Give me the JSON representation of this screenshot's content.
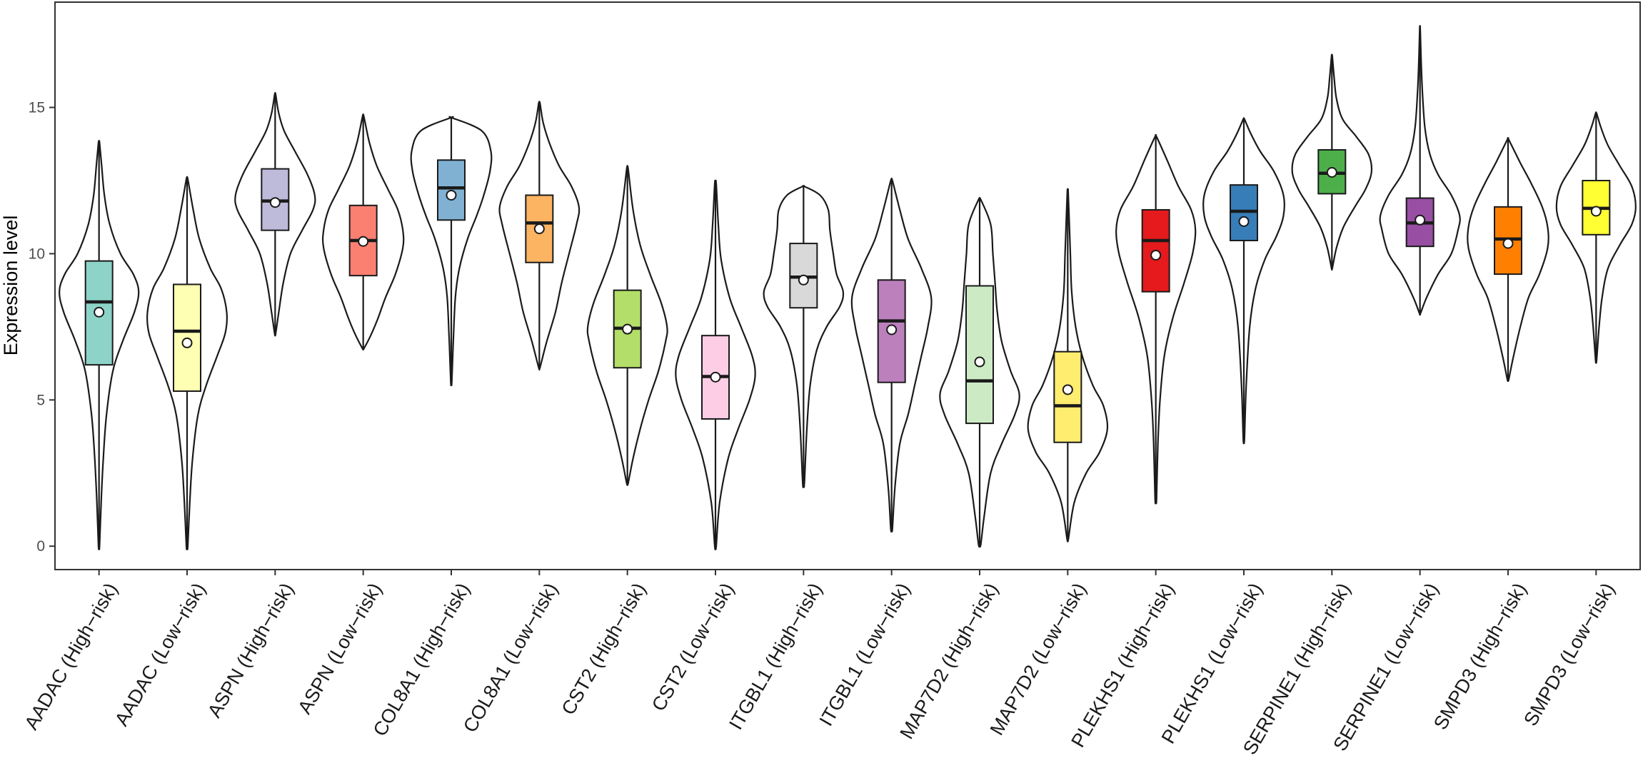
{
  "chart_data": {
    "type": "violin",
    "ylabel": "Expression level",
    "xlabel": "",
    "ylim": [
      -0.8,
      18.6
    ],
    "yticks": [
      0,
      5,
      10,
      15
    ],
    "grid": false,
    "legend": "none",
    "categories": [
      "AADAC (High−risk)",
      "AADAC (Low−risk)",
      "ASPN (High−risk)",
      "ASPN (Low−risk)",
      "COL8A1 (High−risk)",
      "COL8A1 (Low−risk)",
      "CST2 (High−risk)",
      "CST2 (Low−risk)",
      "ITGBL1 (High−risk)",
      "ITGBL1 (Low−risk)",
      "MAP7D2 (High−risk)",
      "MAP7D2 (Low−risk)",
      "PLEKHS1 (High−risk)",
      "PLEKHS1 (Low−risk)",
      "SERPINE1 (High−risk)",
      "SERPINE1 (Low−risk)",
      "SMPD3 (High−risk)",
      "SMPD3 (Low−risk)"
    ],
    "colors": [
      "#8dd3c7",
      "#ffffb3",
      "#bebada",
      "#fb8072",
      "#80b1d3",
      "#fdb462",
      "#b3de69",
      "#fccde5",
      "#d9d9d9",
      "#bc80bd",
      "#ccebc5",
      "#ffed6f",
      "#e41a1c",
      "#377eb8",
      "#4daf4a",
      "#984ea3",
      "#ff7f00",
      "#ffff33"
    ],
    "groups": [
      {
        "min": 0.0,
        "q1": 6.2,
        "median": 8.35,
        "q3": 9.75,
        "max": 13.8,
        "mean": 8.0,
        "density": [
          [
            0.0,
            0.005
          ],
          [
            1.5,
            0.02
          ],
          [
            3.0,
            0.04
          ],
          [
            4.5,
            0.07
          ],
          [
            6.0,
            0.13
          ],
          [
            7.0,
            0.22
          ],
          [
            8.0,
            0.33
          ],
          [
            8.7,
            0.37
          ],
          [
            9.3,
            0.32
          ],
          [
            10.0,
            0.2
          ],
          [
            11.0,
            0.1
          ],
          [
            12.0,
            0.05
          ],
          [
            13.0,
            0.025
          ],
          [
            13.8,
            0.005
          ]
        ]
      },
      {
        "min": 0.0,
        "q1": 5.3,
        "median": 7.35,
        "q3": 8.95,
        "max": 12.55,
        "mean": 6.95,
        "density": [
          [
            0.0,
            0.005
          ],
          [
            1.5,
            0.02
          ],
          [
            3.0,
            0.04
          ],
          [
            4.5,
            0.08
          ],
          [
            5.5,
            0.14
          ],
          [
            6.5,
            0.22
          ],
          [
            7.3,
            0.28
          ],
          [
            8.0,
            0.29
          ],
          [
            8.8,
            0.25
          ],
          [
            9.5,
            0.17
          ],
          [
            10.5,
            0.09
          ],
          [
            11.5,
            0.045
          ],
          [
            12.55,
            0.005
          ]
        ]
      },
      {
        "min": 7.25,
        "q1": 10.8,
        "median": 11.8,
        "q3": 12.9,
        "max": 15.45,
        "mean": 11.75,
        "density": [
          [
            7.25,
            0.005
          ],
          [
            8.0,
            0.04
          ],
          [
            9.0,
            0.09
          ],
          [
            10.0,
            0.17
          ],
          [
            10.8,
            0.3
          ],
          [
            11.5,
            0.42
          ],
          [
            12.0,
            0.44
          ],
          [
            12.7,
            0.36
          ],
          [
            13.5,
            0.22
          ],
          [
            14.2,
            0.1
          ],
          [
            14.8,
            0.04
          ],
          [
            15.45,
            0.005
          ]
        ]
      },
      {
        "min": 6.75,
        "q1": 9.25,
        "median": 10.45,
        "q3": 11.65,
        "max": 14.7,
        "mean": 10.42,
        "density": [
          [
            6.75,
            0.005
          ],
          [
            7.2,
            0.06
          ],
          [
            7.8,
            0.12
          ],
          [
            8.5,
            0.18
          ],
          [
            9.3,
            0.26
          ],
          [
            10.2,
            0.32
          ],
          [
            10.8,
            0.32
          ],
          [
            11.5,
            0.28
          ],
          [
            12.2,
            0.2
          ],
          [
            13.0,
            0.11
          ],
          [
            13.8,
            0.05
          ],
          [
            14.7,
            0.005
          ]
        ]
      },
      {
        "min": 5.6,
        "q1": 11.15,
        "median": 12.25,
        "q3": 13.2,
        "max": 14.65,
        "mean": 12.0,
        "density": [
          [
            5.6,
            0.005
          ],
          [
            7.0,
            0.02
          ],
          [
            8.5,
            0.04
          ],
          [
            9.5,
            0.08
          ],
          [
            10.5,
            0.16
          ],
          [
            11.3,
            0.25
          ],
          [
            12.0,
            0.32
          ],
          [
            12.8,
            0.38
          ],
          [
            13.5,
            0.39
          ],
          [
            14.2,
            0.3
          ],
          [
            14.65,
            0.005
          ]
        ]
      },
      {
        "min": 6.1,
        "q1": 9.7,
        "median": 11.05,
        "q3": 12.0,
        "max": 15.15,
        "mean": 10.85,
        "density": [
          [
            6.1,
            0.005
          ],
          [
            7.0,
            0.06
          ],
          [
            8.0,
            0.13
          ],
          [
            9.0,
            0.18
          ],
          [
            10.0,
            0.24
          ],
          [
            11.0,
            0.3
          ],
          [
            11.6,
            0.32
          ],
          [
            12.3,
            0.26
          ],
          [
            13.0,
            0.16
          ],
          [
            13.8,
            0.08
          ],
          [
            14.5,
            0.03
          ],
          [
            15.15,
            0.005
          ]
        ]
      },
      {
        "min": 2.15,
        "q1": 6.1,
        "median": 7.45,
        "q3": 8.75,
        "max": 12.9,
        "mean": 7.42,
        "density": [
          [
            2.15,
            0.005
          ],
          [
            3.0,
            0.04
          ],
          [
            4.0,
            0.09
          ],
          [
            5.0,
            0.15
          ],
          [
            6.0,
            0.22
          ],
          [
            7.0,
            0.27
          ],
          [
            7.5,
            0.28
          ],
          [
            8.3,
            0.24
          ],
          [
            9.3,
            0.16
          ],
          [
            10.3,
            0.09
          ],
          [
            11.5,
            0.04
          ],
          [
            12.9,
            0.005
          ]
        ]
      },
      {
        "min": 0.0,
        "q1": 4.35,
        "median": 5.8,
        "q3": 7.2,
        "max": 12.4,
        "mean": 5.78,
        "density": [
          [
            0.0,
            0.005
          ],
          [
            1.5,
            0.03
          ],
          [
            3.0,
            0.09
          ],
          [
            4.0,
            0.16
          ],
          [
            5.0,
            0.24
          ],
          [
            5.8,
            0.28
          ],
          [
            6.5,
            0.26
          ],
          [
            7.5,
            0.18
          ],
          [
            8.5,
            0.1
          ],
          [
            9.8,
            0.04
          ],
          [
            11.0,
            0.02
          ],
          [
            12.4,
            0.005
          ]
        ]
      },
      {
        "min": 2.15,
        "q1": 8.15,
        "median": 9.2,
        "q3": 10.35,
        "max": 12.3,
        "mean": 9.1,
        "density": [
          [
            2.15,
            0.005
          ],
          [
            4.0,
            0.02
          ],
          [
            5.5,
            0.04
          ],
          [
            6.7,
            0.08
          ],
          [
            7.5,
            0.14
          ],
          [
            8.2,
            0.22
          ],
          [
            8.7,
            0.24
          ],
          [
            9.3,
            0.2
          ],
          [
            10.0,
            0.18
          ],
          [
            10.8,
            0.16
          ],
          [
            11.5,
            0.15
          ],
          [
            12.0,
            0.1
          ],
          [
            12.3,
            0.005
          ]
        ]
      },
      {
        "min": 0.6,
        "q1": 5.6,
        "median": 7.7,
        "q3": 9.1,
        "max": 12.5,
        "mean": 7.4,
        "density": [
          [
            0.6,
            0.005
          ],
          [
            2.0,
            0.02
          ],
          [
            3.5,
            0.05
          ],
          [
            4.5,
            0.1
          ],
          [
            5.5,
            0.14
          ],
          [
            6.5,
            0.18
          ],
          [
            7.5,
            0.22
          ],
          [
            8.5,
            0.24
          ],
          [
            9.5,
            0.18
          ],
          [
            10.5,
            0.1
          ],
          [
            11.5,
            0.05
          ],
          [
            12.5,
            0.005
          ]
        ]
      },
      {
        "min": 0.05,
        "q1": 4.2,
        "median": 5.65,
        "q3": 8.9,
        "max": 11.85,
        "mean": 6.3,
        "density": [
          [
            0.05,
            0.005
          ],
          [
            1.0,
            0.02
          ],
          [
            2.5,
            0.05
          ],
          [
            3.5,
            0.1
          ],
          [
            4.5,
            0.16
          ],
          [
            5.2,
            0.18
          ],
          [
            6.0,
            0.14
          ],
          [
            7.0,
            0.1
          ],
          [
            8.0,
            0.08
          ],
          [
            9.0,
            0.07
          ],
          [
            10.0,
            0.06
          ],
          [
            11.0,
            0.05
          ],
          [
            11.85,
            0.005
          ]
        ]
      },
      {
        "min": 0.25,
        "q1": 3.55,
        "median": 4.8,
        "q3": 6.65,
        "max": 12.15,
        "mean": 5.35,
        "density": [
          [
            0.25,
            0.005
          ],
          [
            1.5,
            0.05
          ],
          [
            2.5,
            0.14
          ],
          [
            3.2,
            0.24
          ],
          [
            4.0,
            0.3
          ],
          [
            4.8,
            0.27
          ],
          [
            5.5,
            0.19
          ],
          [
            6.5,
            0.11
          ],
          [
            7.5,
            0.06
          ],
          [
            8.7,
            0.03
          ],
          [
            10.0,
            0.02
          ],
          [
            11.3,
            0.01
          ],
          [
            12.15,
            0.003
          ]
        ]
      },
      {
        "min": 1.6,
        "q1": 8.7,
        "median": 10.45,
        "q3": 11.5,
        "max": 14.0,
        "mean": 9.95,
        "density": [
          [
            1.6,
            0.005
          ],
          [
            3.5,
            0.015
          ],
          [
            5.0,
            0.03
          ],
          [
            6.5,
            0.06
          ],
          [
            7.8,
            0.12
          ],
          [
            9.0,
            0.2
          ],
          [
            10.0,
            0.26
          ],
          [
            10.8,
            0.28
          ],
          [
            11.5,
            0.25
          ],
          [
            12.3,
            0.16
          ],
          [
            13.2,
            0.08
          ],
          [
            14.0,
            0.005
          ]
        ]
      },
      {
        "min": 3.65,
        "q1": 10.45,
        "median": 11.45,
        "q3": 12.35,
        "max": 14.6,
        "mean": 11.1,
        "density": [
          [
            3.65,
            0.005
          ],
          [
            5.5,
            0.02
          ],
          [
            7.5,
            0.05
          ],
          [
            8.8,
            0.1
          ],
          [
            9.8,
            0.18
          ],
          [
            10.6,
            0.28
          ],
          [
            11.3,
            0.34
          ],
          [
            12.0,
            0.34
          ],
          [
            12.8,
            0.26
          ],
          [
            13.5,
            0.14
          ],
          [
            14.1,
            0.06
          ],
          [
            14.6,
            0.005
          ]
        ]
      },
      {
        "min": 9.5,
        "q1": 12.05,
        "median": 12.75,
        "q3": 13.55,
        "max": 16.75,
        "mean": 12.78,
        "density": [
          [
            9.5,
            0.005
          ],
          [
            10.2,
            0.06
          ],
          [
            10.9,
            0.15
          ],
          [
            11.6,
            0.3
          ],
          [
            12.2,
            0.44
          ],
          [
            12.8,
            0.52
          ],
          [
            13.4,
            0.48
          ],
          [
            14.0,
            0.32
          ],
          [
            14.6,
            0.14
          ],
          [
            15.3,
            0.06
          ],
          [
            16.0,
            0.03
          ],
          [
            16.75,
            0.005
          ]
        ]
      },
      {
        "min": 7.95,
        "q1": 10.25,
        "median": 11.05,
        "q3": 11.9,
        "max": 17.7,
        "mean": 11.15,
        "density": [
          [
            7.95,
            0.005
          ],
          [
            8.5,
            0.08
          ],
          [
            9.3,
            0.22
          ],
          [
            10.0,
            0.38
          ],
          [
            10.8,
            0.46
          ],
          [
            11.3,
            0.48
          ],
          [
            12.0,
            0.38
          ],
          [
            12.7,
            0.22
          ],
          [
            13.4,
            0.12
          ],
          [
            14.3,
            0.06
          ],
          [
            15.5,
            0.03
          ],
          [
            16.5,
            0.015
          ],
          [
            17.7,
            0.003
          ]
        ]
      },
      {
        "min": 5.7,
        "q1": 9.3,
        "median": 10.5,
        "q3": 11.6,
        "max": 13.9,
        "mean": 10.35,
        "density": [
          [
            5.7,
            0.005
          ],
          [
            6.5,
            0.04
          ],
          [
            7.5,
            0.09
          ],
          [
            8.5,
            0.15
          ],
          [
            9.3,
            0.23
          ],
          [
            10.2,
            0.29
          ],
          [
            10.9,
            0.29
          ],
          [
            11.6,
            0.25
          ],
          [
            12.4,
            0.17
          ],
          [
            13.1,
            0.09
          ],
          [
            13.9,
            0.005
          ]
        ]
      },
      {
        "min": 6.35,
        "q1": 10.65,
        "median": 11.55,
        "q3": 12.5,
        "max": 14.8,
        "mean": 11.45,
        "density": [
          [
            6.35,
            0.005
          ],
          [
            7.5,
            0.03
          ],
          [
            8.5,
            0.06
          ],
          [
            9.5,
            0.12
          ],
          [
            10.3,
            0.24
          ],
          [
            11.0,
            0.36
          ],
          [
            11.6,
            0.4
          ],
          [
            12.3,
            0.36
          ],
          [
            13.0,
            0.24
          ],
          [
            13.7,
            0.12
          ],
          [
            14.3,
            0.05
          ],
          [
            14.8,
            0.005
          ]
        ]
      }
    ]
  }
}
